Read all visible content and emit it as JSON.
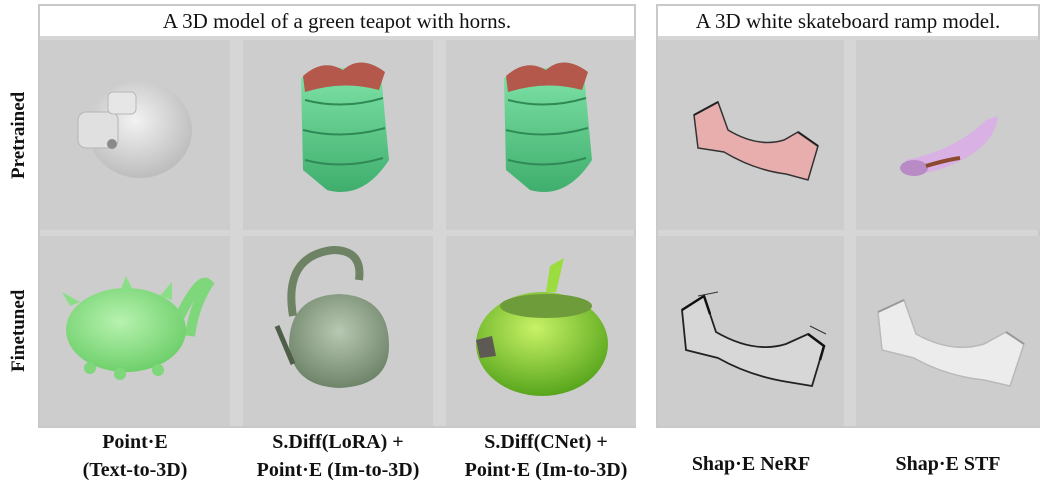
{
  "panels": {
    "left_title": "A 3D model of a green teapot with horns.",
    "right_title": "A 3D white skateboard ramp model."
  },
  "rows": {
    "pretrained": "Pretrained",
    "finetuned": "Finetuned"
  },
  "columns": [
    {
      "line1": "Point·E",
      "line2": "(Text-to-3D)"
    },
    {
      "line1": "S.Diff(LoRA) +",
      "line2": "Point·E (Im-to-3D)"
    },
    {
      "line1": "S.Diff(CNet) +",
      "line2": "Point·E (Im-to-3D)"
    },
    {
      "line1": "Shap·E NeRF",
      "line2": ""
    },
    {
      "line1": "Shap·E STF",
      "line2": ""
    }
  ]
}
